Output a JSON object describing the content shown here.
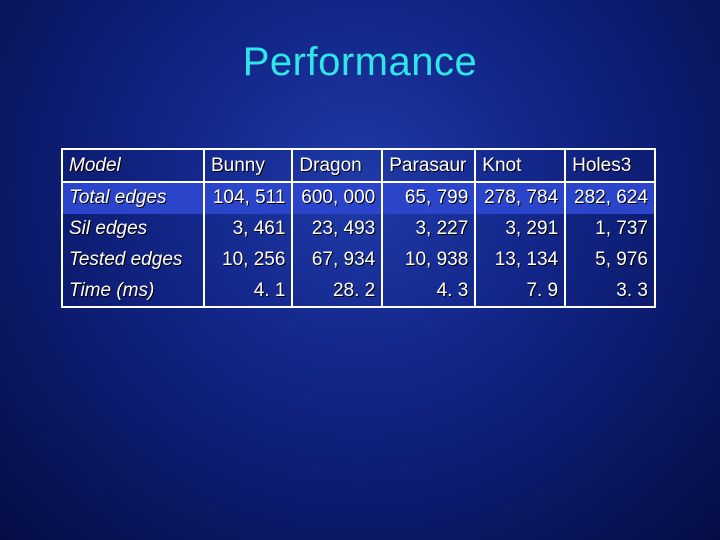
{
  "slide": {
    "title": "Performance"
  },
  "table": {
    "corner_label": "Model",
    "columns": [
      "Bunny",
      "Dragon",
      "Parasaur",
      "Knot",
      "Holes3"
    ],
    "rows": [
      {
        "label": "Total edges",
        "values": [
          "104, 511",
          "600, 000",
          "65, 799",
          "278, 784",
          "282, 624"
        ]
      },
      {
        "label": "Sil edges",
        "values": [
          "3, 461",
          "23, 493",
          "3, 227",
          "3, 291",
          "1, 737"
        ]
      },
      {
        "label": "Tested edges",
        "values": [
          "10, 256",
          "67, 934",
          "10, 938",
          "13, 134",
          "5, 976"
        ]
      },
      {
        "label": "Time (ms)",
        "values": [
          "4. 1",
          "28. 2",
          "4. 3",
          "7. 9",
          "3. 3"
        ]
      }
    ]
  },
  "colors": {
    "title": "#2ee6e6",
    "background": "#13278a",
    "highlight_row": "#2a45c9"
  }
}
